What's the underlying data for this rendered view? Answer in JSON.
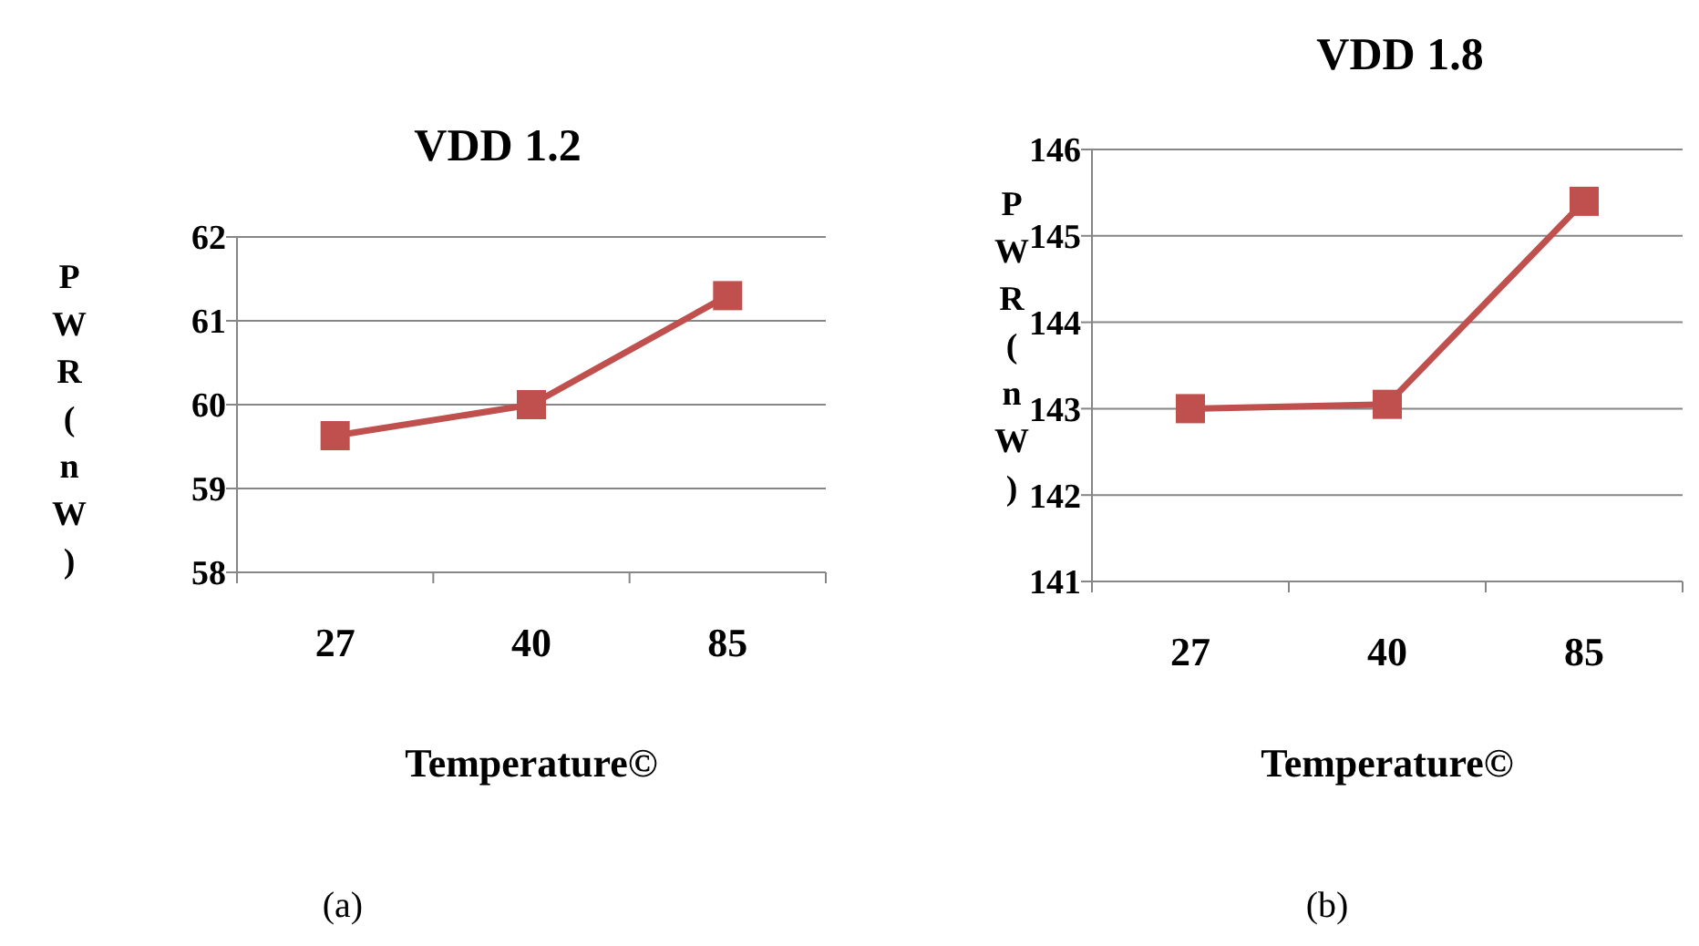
{
  "chart_data": [
    {
      "type": "line",
      "title": "VDD 1.2",
      "xlabel": "Temperature©",
      "ylabel": "PWR(nW)",
      "categories": [
        "27",
        "40",
        "85"
      ],
      "series": [
        {
          "color": "#c0504d",
          "values": [
            59.63,
            60.0,
            61.3
          ]
        }
      ],
      "ylim": [
        58,
        62
      ],
      "yticks": [
        58,
        59,
        60,
        61,
        62
      ],
      "grid": "y",
      "marker": "square",
      "annotations": [
        "(a)"
      ]
    },
    {
      "type": "line",
      "title": "VDD 1.8",
      "xlabel": "Temperature©",
      "ylabel": "PWR(nW)",
      "categories": [
        "27",
        "40",
        "85"
      ],
      "series": [
        {
          "color": "#c0504d",
          "values": [
            143.0,
            143.05,
            145.4
          ]
        }
      ],
      "ylim": [
        141,
        146
      ],
      "yticks": [
        141,
        142,
        143,
        144,
        145,
        146
      ],
      "grid": "y",
      "marker": "square",
      "annotations": [
        "(b)"
      ]
    }
  ]
}
